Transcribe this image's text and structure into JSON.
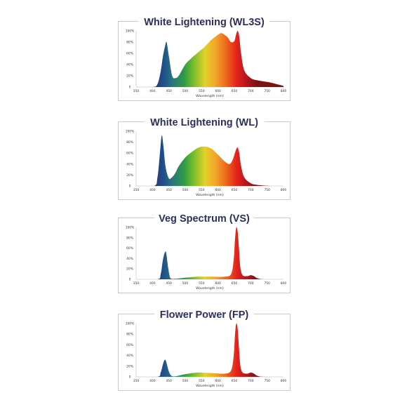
{
  "colors": {
    "title": "#2b2f5c",
    "spectrum_stops": [
      "#2b2f6e",
      "#1f4f8c",
      "#2a7a7a",
      "#2f9a47",
      "#7fbf2a",
      "#e2d12a",
      "#f2a52a",
      "#ef6a1d",
      "#e4241c",
      "#b5141a",
      "#7a1414"
    ]
  },
  "chart_data": [
    {
      "type": "area",
      "title": "White Lightening (WL3S)",
      "xlabel": "Wavelength (nm)",
      "ylabel": "",
      "xlim": [
        350,
        800
      ],
      "ylim": [
        0,
        100
      ],
      "xticks": [
        350,
        400,
        450,
        500,
        550,
        600,
        650,
        700,
        750,
        800
      ],
      "xtick_labels": [
        "350",
        "400",
        "450",
        "500",
        "550",
        "600",
        "650",
        "700",
        "750",
        "800"
      ],
      "yticks": [
        0,
        20,
        40,
        60,
        80,
        100
      ],
      "ytick_labels": [
        "0",
        "20%",
        "40%",
        "60%",
        "80%",
        "100%"
      ],
      "grid": false,
      "legend": "none",
      "x": [
        350,
        400,
        415,
        425,
        432,
        438,
        443,
        450,
        460,
        470,
        480,
        500,
        520,
        540,
        560,
        580,
        600,
        610,
        620,
        630,
        640,
        650,
        655,
        660,
        665,
        670,
        680,
        700,
        720,
        740,
        760,
        780,
        800
      ],
      "y": [
        0,
        0,
        5,
        28,
        55,
        72,
        80,
        55,
        20,
        16,
        20,
        40,
        52,
        62,
        72,
        84,
        93,
        96,
        93,
        88,
        80,
        82,
        93,
        100,
        90,
        62,
        30,
        16,
        12,
        10,
        8,
        5,
        2
      ]
    },
    {
      "type": "area",
      "title": "White Lightening (WL)",
      "xlabel": "Wavelength (nm)",
      "ylabel": "",
      "xlim": [
        350,
        800
      ],
      "ylim": [
        0,
        100
      ],
      "xticks": [
        350,
        400,
        450,
        500,
        550,
        600,
        650,
        700,
        750,
        800
      ],
      "xtick_labels": [
        "350",
        "400",
        "450",
        "500",
        "550",
        "600",
        "650",
        "700",
        "750",
        "800"
      ],
      "yticks": [
        0,
        20,
        40,
        60,
        80,
        100
      ],
      "ytick_labels": [
        "0",
        "20%",
        "40%",
        "60%",
        "80%",
        "100%"
      ],
      "grid": false,
      "legend": "none",
      "x": [
        350,
        405,
        415,
        422,
        428,
        433,
        440,
        450,
        460,
        470,
        480,
        500,
        520,
        540,
        560,
        580,
        600,
        620,
        635,
        645,
        655,
        660,
        665,
        670,
        680,
        700,
        720,
        760,
        800
      ],
      "y": [
        0,
        0,
        15,
        55,
        92,
        75,
        35,
        14,
        16,
        24,
        36,
        52,
        62,
        70,
        72,
        68,
        57,
        45,
        40,
        48,
        66,
        70,
        60,
        38,
        16,
        5,
        2,
        0,
        0
      ]
    },
    {
      "type": "area",
      "title": "Veg Spectrum (VS)",
      "xlabel": "Wavelength (nm)",
      "ylabel": "",
      "xlim": [
        350,
        800
      ],
      "ylim": [
        0,
        100
      ],
      "xticks": [
        350,
        400,
        450,
        500,
        550,
        600,
        650,
        700,
        750,
        800
      ],
      "xtick_labels": [
        "350",
        "400",
        "450",
        "500",
        "550",
        "600",
        "650",
        "700",
        "750",
        "800"
      ],
      "yticks": [
        0,
        20,
        40,
        60,
        80,
        100
      ],
      "ytick_labels": [
        "0",
        "20%",
        "40%",
        "60%",
        "80%",
        "100%"
      ],
      "grid": false,
      "legend": "none",
      "x": [
        350,
        415,
        425,
        432,
        438,
        442,
        448,
        455,
        470,
        500,
        540,
        580,
        620,
        640,
        648,
        652,
        656,
        660,
        664,
        668,
        675,
        690,
        700,
        710,
        720,
        740,
        800
      ],
      "y": [
        0,
        0,
        10,
        38,
        52,
        50,
        22,
        2,
        1,
        3,
        5,
        5,
        5,
        10,
        38,
        78,
        100,
        92,
        60,
        24,
        8,
        6,
        8,
        6,
        2,
        0,
        0
      ]
    },
    {
      "type": "area",
      "title": "Flower Power (FP)",
      "xlabel": "Wavelength (nm)",
      "ylabel": "",
      "xlim": [
        350,
        800
      ],
      "ylim": [
        0,
        100
      ],
      "xticks": [
        350,
        400,
        450,
        500,
        550,
        600,
        650,
        700,
        750,
        800
      ],
      "xtick_labels": [
        "350",
        "400",
        "450",
        "500",
        "550",
        "600",
        "650",
        "700",
        "750",
        "800"
      ],
      "yticks": [
        0,
        20,
        40,
        60,
        80,
        100
      ],
      "ytick_labels": [
        "0",
        "20%",
        "40%",
        "60%",
        "80%",
        "100%"
      ],
      "grid": false,
      "legend": "none",
      "x": [
        350,
        415,
        425,
        433,
        438,
        442,
        450,
        458,
        470,
        500,
        540,
        580,
        620,
        640,
        648,
        652,
        656,
        660,
        664,
        668,
        675,
        690,
        700,
        710,
        720,
        740,
        800
      ],
      "y": [
        0,
        0,
        8,
        26,
        32,
        28,
        10,
        2,
        1,
        5,
        8,
        7,
        6,
        12,
        40,
        80,
        100,
        90,
        55,
        22,
        8,
        6,
        8,
        6,
        2,
        0,
        0
      ]
    }
  ]
}
